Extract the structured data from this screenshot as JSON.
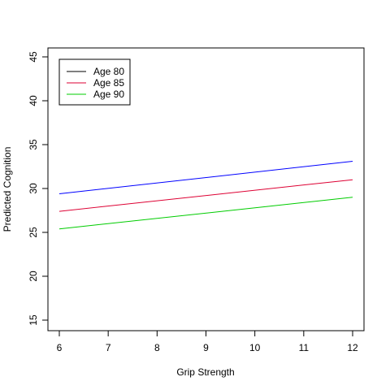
{
  "chart_data": {
    "type": "line",
    "title": "",
    "xlabel": "Grip Strength",
    "ylabel": "Predicted Cognition",
    "xlim": [
      6,
      12
    ],
    "ylim": [
      15,
      45
    ],
    "xticks": [
      6,
      7,
      8,
      9,
      10,
      11,
      12
    ],
    "yticks": [
      15,
      20,
      25,
      30,
      35,
      40,
      45
    ],
    "grid": false,
    "legend_position": "top-left",
    "series": [
      {
        "name": "Age 80",
        "color": "#0000ff",
        "legend_color": "#000000",
        "x": [
          6,
          12
        ],
        "y": [
          29.4,
          33.1
        ]
      },
      {
        "name": "Age 85",
        "color": "#dd0033",
        "legend_color": "#dd0033",
        "x": [
          6,
          12
        ],
        "y": [
          27.4,
          31.0
        ]
      },
      {
        "name": "Age 90",
        "color": "#00cc00",
        "legend_color": "#00cc00",
        "x": [
          6,
          12
        ],
        "y": [
          25.4,
          29.0
        ]
      }
    ]
  }
}
